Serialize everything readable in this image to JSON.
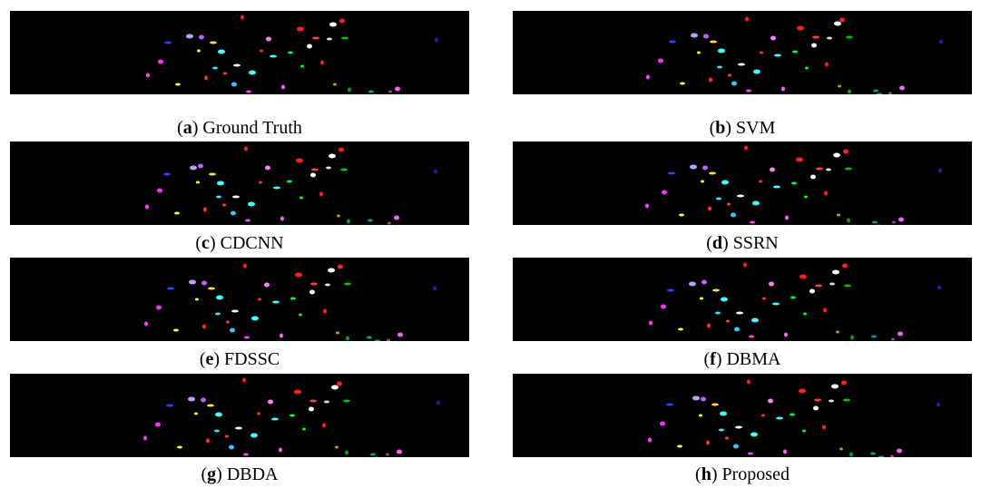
{
  "figure": {
    "panels": [
      {
        "caption_parts": [
          "(",
          "a",
          ") Ground Truth"
        ]
      },
      {
        "caption_parts": [
          "(",
          "b",
          ") SVM"
        ]
      },
      {
        "caption_parts": [
          "(",
          "c",
          ") CDCNN"
        ]
      },
      {
        "caption_parts": [
          "(",
          "d",
          ") SSRN"
        ]
      },
      {
        "caption_parts": [
          "(",
          "e",
          ") FDSSC"
        ]
      },
      {
        "caption_parts": [
          "(",
          "f",
          ") DBMA"
        ]
      },
      {
        "caption_parts": [
          "(",
          "g",
          ") DBDA"
        ]
      },
      {
        "caption_parts": [
          "(",
          "h",
          ") Proposed"
        ]
      }
    ]
  }
}
